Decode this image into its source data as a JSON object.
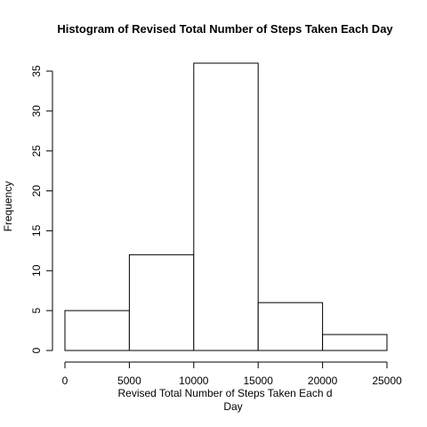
{
  "chart_data": {
    "type": "bar",
    "title": "Histogram of Revised Total Number of Steps Taken Each Day",
    "xlabel_line1": "Revised Total Number of Steps Taken Each d",
    "xlabel_line2": "Day",
    "ylabel": "Frequency",
    "bins": [
      {
        "start": 0,
        "end": 5000,
        "count": 5
      },
      {
        "start": 5000,
        "end": 10000,
        "count": 12
      },
      {
        "start": 10000,
        "end": 15000,
        "count": 36
      },
      {
        "start": 15000,
        "end": 20000,
        "count": 6
      },
      {
        "start": 20000,
        "end": 25000,
        "count": 2
      }
    ],
    "xlim": [
      0,
      25000
    ],
    "ylim": [
      0,
      36
    ],
    "xticks": [
      0,
      5000,
      10000,
      15000,
      20000,
      25000
    ],
    "yticks": [
      0,
      5,
      10,
      15,
      20,
      25,
      30,
      35
    ],
    "grid": false,
    "legend": "none"
  }
}
